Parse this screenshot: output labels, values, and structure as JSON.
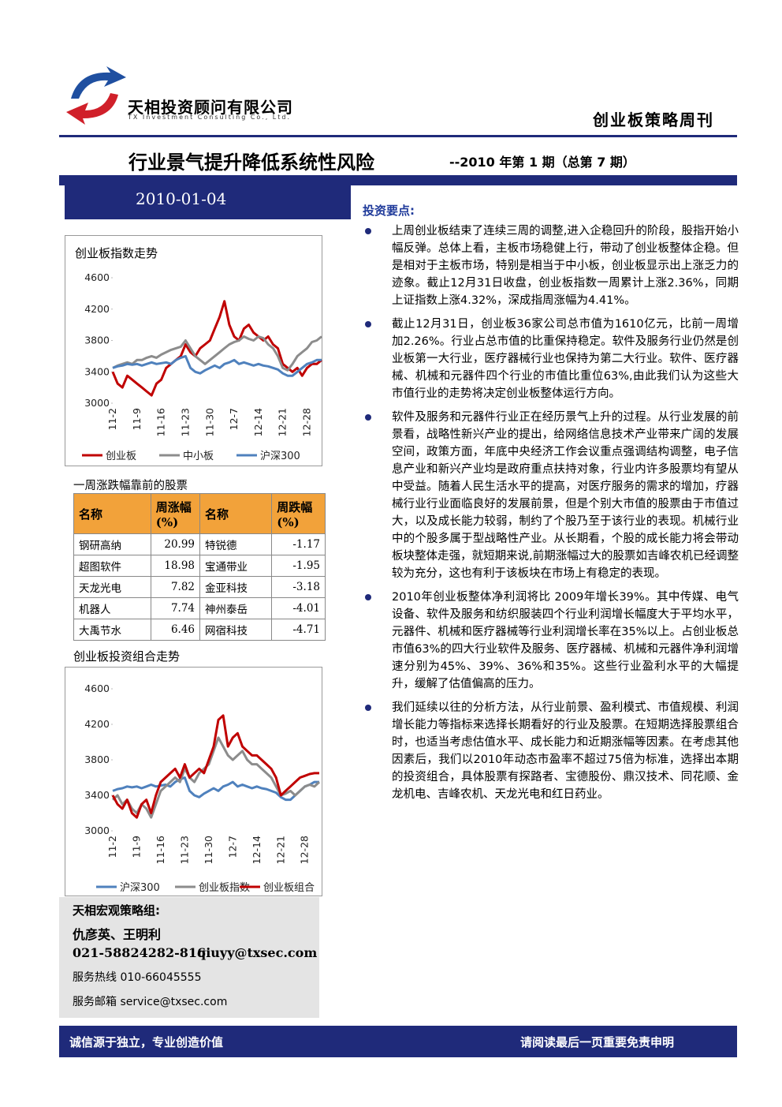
{
  "header": {
    "company_name": "天相投资顾问有限公司",
    "company_name_en": "TX Investment Consulting Co., Ltd.",
    "publication": "创业板策略周刊"
  },
  "title": "行业景气提升降低系统性风险",
  "issue": "--2010 年第 1 期（总第 7 期）",
  "date": "2010-01-04",
  "key_points": {
    "heading": "投资要点:",
    "items": [
      "上周创业板结束了连续三周的调整,进入企稳回升的阶段，股指开始小幅反弹。总体上看，主板市场稳健上行，带动了创业板整体企稳。但是相对于主板市场，特别是相当于中小板，创业板显示出上涨乏力的迹象。截止12月31日收盘，创业板指数一周累计上涨2.36%，同期上证指数上涨4.32%，深成指周涨幅为4.41%。",
      "截止12月31日，创业板36家公司总市值为1610亿元，比前一周增加2.26%。行业占总市值的比重保持稳定。软件及服务行业仍然是创业板第一大行业，医疗器械行业也保持为第二大行业。软件、医疗器械、机械和元器件四个行业的市值比重位63%,由此我们认为这些大市值行业的走势将决定创业板整体运行方向。",
      "软件及服务和元器件行业正在经历景气上升的过程。从行业发展的前景看，战略性新兴产业的提出，给网络信息技术产业带来广阔的发展空间，政策方面，年底中央经济工作会议重点强调结构调整，电子信息产业和新兴产业均是政府重点扶持对象，行业内许多股票均有望从中受益。随着人民生活水平的提高，对医疗服务的需求的增加，疗器械行业行业面临良好的发展前景，但是个别大市值的股票由于市值过大，以及成长能力较弱，制约了个股乃至于该行业的表现。机械行业中的个股多属于型战略性产业。从长期看，个股的成长能力将会带动板块整体走强，就短期来说,前期涨幅过大的股票如吉峰农机已经调整较为充分，这也有利于该板块在市场上有稳定的表现。",
      "2010年创业板整体净利润将比 2009年增长39%。其中传媒、电气设备、软件及服务和纺织服装四个行业利润增长幅度大于平均水平，元器件、机械和医疗器械等行业利润增长率在35%以上。占创业板总市值63%的四大行业软件及服务、医疗器械、机械和元器件净利润增速分别为45%、39%、36%和35%。这些行业盈利水平的大幅提升，缓解了估值偏高的压力。",
      "我们延续以往的分析方法，从行业前景、盈利模式、市值规模、利润增长能力等指标来选择长期看好的行业及股票。在短期选择股票组合时，也适当考虑估值水平、成长能力和近期涨幅等因素。在考虑其他因素后，我们以2010年动态市盈率不超过75倍为标准，选择出本期的投资组合，具体股票有探路者、宝德股份、鼎汉技术、同花顺、金龙机电、吉峰农机、天龙光电和红日药业。"
    ]
  },
  "chart_data": [
    {
      "type": "line",
      "title": "创业板指数走势",
      "categories": [
        "11-2",
        null,
        null,
        null,
        null,
        "11-9",
        null,
        null,
        null,
        null,
        "11-16",
        null,
        null,
        null,
        null,
        "11-23",
        null,
        null,
        null,
        null,
        "11-30",
        null,
        null,
        null,
        null,
        "12-7",
        null,
        null,
        null,
        null,
        "12-14",
        null,
        null,
        null,
        null,
        "12-21",
        null,
        null,
        null,
        null,
        "12-28",
        null,
        null,
        null
      ],
      "ylim": [
        3000,
        4600
      ],
      "yticks": [
        3000,
        3400,
        3800,
        4200,
        4600
      ],
      "series": [
        {
          "name": "创业板",
          "color": "#c00000",
          "values": [
            3400,
            3250,
            3200,
            3350,
            3300,
            3250,
            3200,
            3150,
            3100,
            3250,
            3300,
            3450,
            3500,
            3550,
            3600,
            3750,
            3650,
            3600,
            3700,
            3750,
            3800,
            3950,
            4100,
            4300,
            4000,
            3850,
            3800,
            3950,
            4000,
            3900,
            3850,
            3800,
            3850,
            3750,
            3700,
            3500,
            3450,
            3400,
            3450,
            3350,
            3450,
            3500,
            3500,
            3550
          ]
        },
        {
          "name": "中小板",
          "color": "#8c8c8c",
          "values": [
            3450,
            3480,
            3500,
            3520,
            3500,
            3550,
            3550,
            3580,
            3600,
            3580,
            3620,
            3650,
            3680,
            3700,
            3720,
            3800,
            3700,
            3600,
            3550,
            3500,
            3550,
            3600,
            3650,
            3700,
            3750,
            3780,
            3800,
            3850,
            3820,
            3800,
            3850,
            3830,
            3750,
            3700,
            3600,
            3450,
            3420,
            3500,
            3600,
            3650,
            3700,
            3780,
            3800,
            3850
          ]
        },
        {
          "name": "沪深300",
          "color": "#4f81bd",
          "values": [
            3450,
            3470,
            3480,
            3500,
            3490,
            3500,
            3480,
            3500,
            3520,
            3500,
            3510,
            3520,
            3500,
            3550,
            3580,
            3600,
            3450,
            3400,
            3380,
            3420,
            3450,
            3480,
            3450,
            3500,
            3520,
            3550,
            3500,
            3520,
            3500,
            3480,
            3500,
            3480,
            3470,
            3450,
            3430,
            3380,
            3350,
            3350,
            3400,
            3450,
            3500,
            3520,
            3550,
            3550
          ]
        }
      ]
    },
    {
      "type": "line",
      "title": "创业板投资组合走势",
      "categories": [
        "11-2",
        null,
        null,
        null,
        null,
        "11-9",
        null,
        null,
        null,
        null,
        "11-16",
        null,
        null,
        null,
        null,
        "11-23",
        null,
        null,
        null,
        null,
        "11-30",
        null,
        null,
        null,
        null,
        "12-7",
        null,
        null,
        null,
        null,
        "12-14",
        null,
        null,
        null,
        null,
        "12-21",
        null,
        null,
        null,
        null,
        "12-28",
        null,
        null,
        null
      ],
      "ylim": [
        3000,
        4600
      ],
      "yticks": [
        3000,
        3400,
        3800,
        4200,
        4600
      ],
      "series": [
        {
          "name": "沪深300",
          "color": "#4f81bd",
          "values": [
            3450,
            3470,
            3480,
            3500,
            3490,
            3500,
            3480,
            3500,
            3520,
            3500,
            3510,
            3520,
            3500,
            3550,
            3580,
            3600,
            3450,
            3400,
            3380,
            3420,
            3450,
            3480,
            3450,
            3500,
            3520,
            3550,
            3500,
            3520,
            3500,
            3480,
            3500,
            3480,
            3470,
            3450,
            3430,
            3380,
            3350,
            3350,
            3400,
            3450,
            3500,
            3520,
            3550,
            3550
          ]
        },
        {
          "name": "创业板指数",
          "color": "#8c8c8c",
          "values": [
            3350,
            3400,
            3300,
            3350,
            3250,
            3200,
            3300,
            3250,
            3150,
            3300,
            3450,
            3500,
            3550,
            3600,
            3550,
            3700,
            3600,
            3550,
            3650,
            3700,
            3750,
            3900,
            4050,
            3950,
            3850,
            3800,
            3850,
            3900,
            3800,
            3750,
            3750,
            3700,
            3650,
            3600,
            3500,
            3400,
            3420,
            3450,
            3400,
            3450,
            3500,
            3520,
            3500,
            3550
          ]
        },
        {
          "name": "创业板组合",
          "color": "#c00000",
          "values": [
            3400,
            3300,
            3250,
            3350,
            3200,
            3150,
            3300,
            3350,
            3200,
            3400,
            3550,
            3600,
            3650,
            3700,
            3600,
            3750,
            3600,
            3650,
            3700,
            3650,
            3800,
            3950,
            4250,
            4300,
            3950,
            4050,
            4100,
            3950,
            3900,
            3850,
            3850,
            3800,
            3750,
            3700,
            3600,
            3400,
            3450,
            3500,
            3550,
            3600,
            3620,
            3640,
            3650,
            3650
          ]
        }
      ]
    }
  ],
  "table": {
    "title": "一周涨跌幅靠前的股票",
    "headers": [
      "名称",
      "周涨幅(%)",
      "名称",
      "周跌幅(%)"
    ],
    "rows": [
      [
        "钢研高纳",
        "20.99",
        "特锐德",
        "-1.17"
      ],
      [
        "超图软件",
        "18.98",
        "宝通带业",
        "-1.95"
      ],
      [
        "天龙光电",
        "7.82",
        "金亚科技",
        "-3.18"
      ],
      [
        "机器人",
        "7.74",
        "神州泰岳",
        "-4.01"
      ],
      [
        "大禹节水",
        "6.46",
        "网宿科技",
        "-4.71"
      ]
    ]
  },
  "contact": {
    "team": "天相宏观策略组:",
    "names": "仇彦英、王明利",
    "phone": "021-58824282-816",
    "email": "qiuyy@txsec.com",
    "hotline": "服务热线 010-66045555",
    "mailbox": "服务邮箱 service@txsec.com"
  },
  "footer": {
    "left": "诚信源于独立，专业创造价值",
    "right": "请阅读最后一页重要免责申明"
  }
}
